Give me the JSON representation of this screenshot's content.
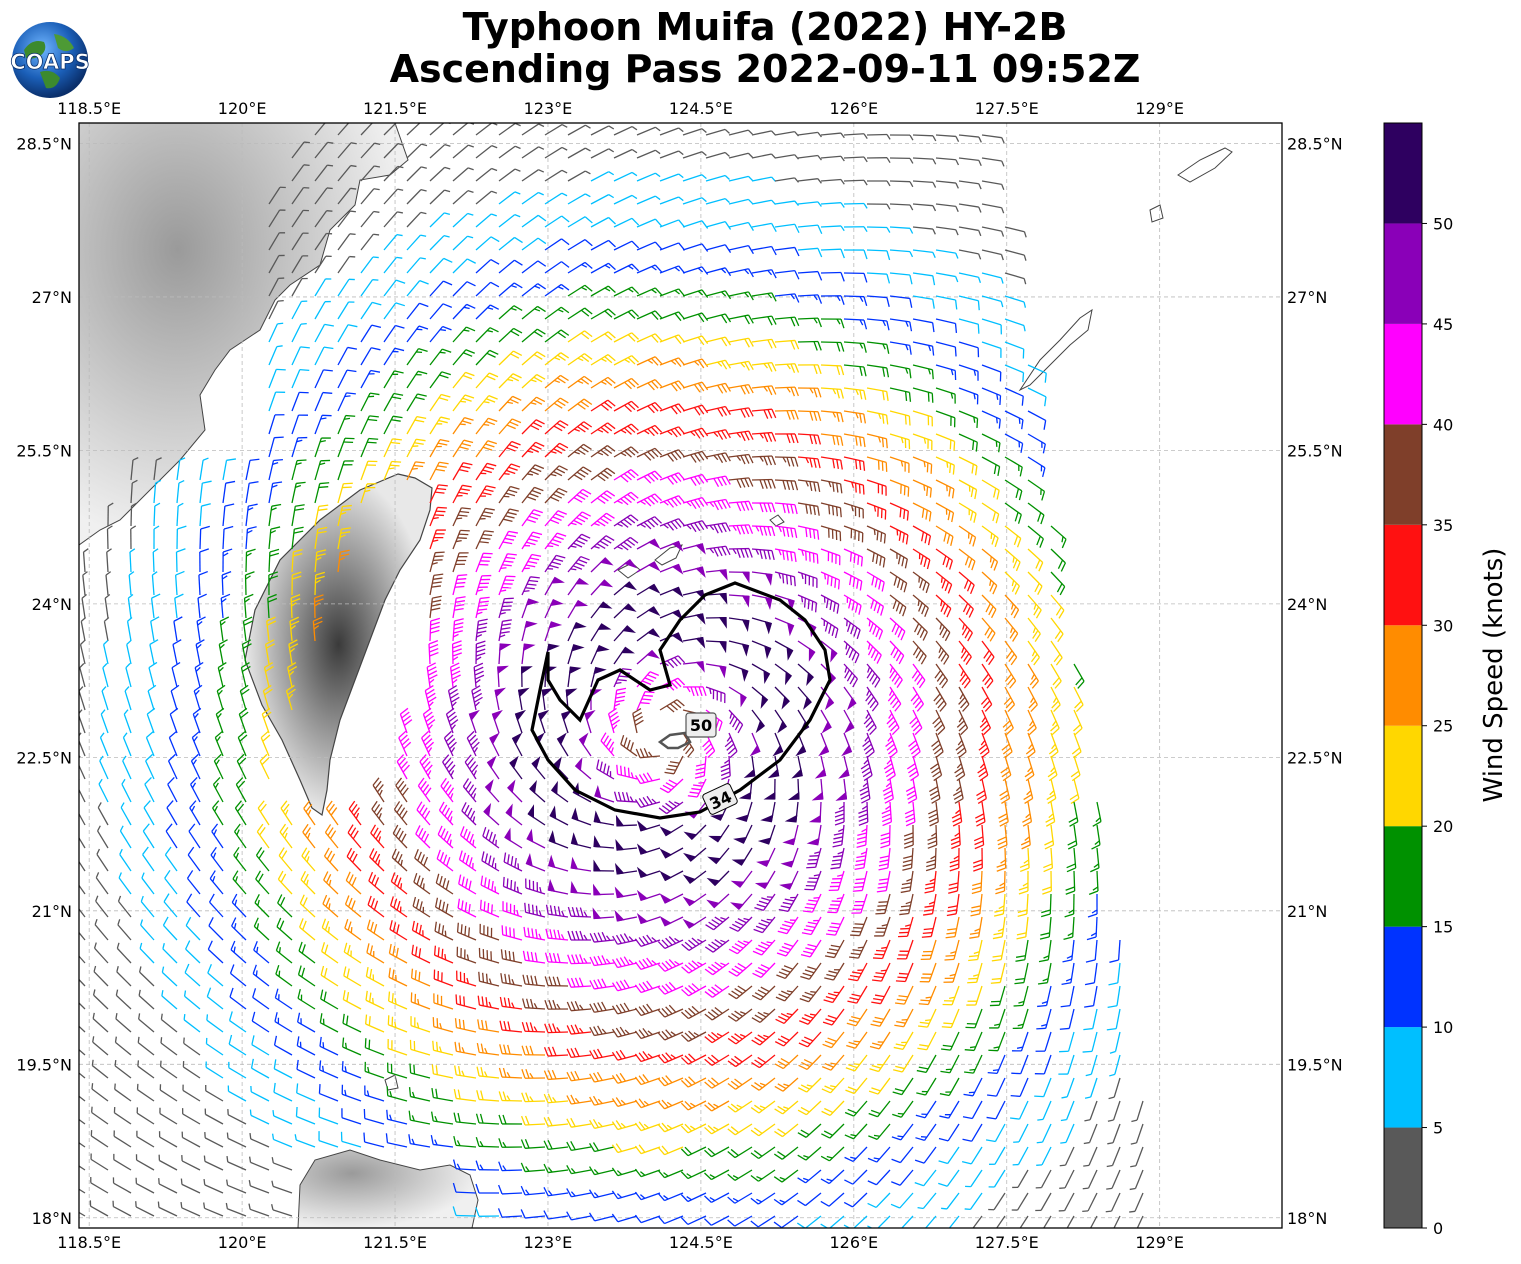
{
  "title": {
    "line1": "Typhoon Muifa (2022) HY-2B",
    "line2": "Ascending Pass 2022-09-11 09:52Z"
  },
  "logo": {
    "text": "COAPS",
    "icon": "globe-logo-icon"
  },
  "map": {
    "lon_range": [
      118.4,
      130.2
    ],
    "lat_range": [
      17.9,
      28.7
    ],
    "lon_ticks": [
      118.5,
      120,
      121.5,
      123,
      124.5,
      126,
      127.5,
      129
    ],
    "lat_ticks": [
      18,
      19.5,
      21,
      22.5,
      24,
      25.5,
      27,
      28.5
    ],
    "lon_tick_labels": [
      "118.5°E",
      "120°E",
      "121.5°E",
      "123°E",
      "124.5°E",
      "126°E",
      "127.5°E",
      "129°E"
    ],
    "lat_tick_labels": [
      "18°N",
      "19.5°N",
      "21°N",
      "22.5°N",
      "24°N",
      "25.5°N",
      "27°N",
      "28.5°N"
    ],
    "gridlines": true
  },
  "storm": {
    "center_lon": 124.15,
    "center_lat": 22.7,
    "contours": [
      {
        "label": "34",
        "color": "#000000"
      },
      {
        "label": "50",
        "color": "#555555"
      }
    ]
  },
  "colorbar": {
    "label": "Wind Speed (knots)",
    "ticks": [
      "0",
      "5",
      "10",
      "15",
      "20",
      "25",
      "30",
      "35",
      "40",
      "45",
      "50"
    ],
    "bins": [
      {
        "min": 0,
        "max": 5,
        "color": "#595959"
      },
      {
        "min": 5,
        "max": 10,
        "color": "#00bfff"
      },
      {
        "min": 10,
        "max": 15,
        "color": "#0033ff"
      },
      {
        "min": 15,
        "max": 20,
        "color": "#009100"
      },
      {
        "min": 20,
        "max": 25,
        "color": "#ffd700"
      },
      {
        "min": 25,
        "max": 30,
        "color": "#ff8c00"
      },
      {
        "min": 30,
        "max": 35,
        "color": "#ff1111"
      },
      {
        "min": 35,
        "max": 40,
        "color": "#7f3f2a"
      },
      {
        "min": 40,
        "max": 45,
        "color": "#ff00ff"
      },
      {
        "min": 45,
        "max": 50,
        "color": "#8a00b8"
      },
      {
        "min": 50,
        "max": 55,
        "color": "#2e0060"
      }
    ]
  }
}
